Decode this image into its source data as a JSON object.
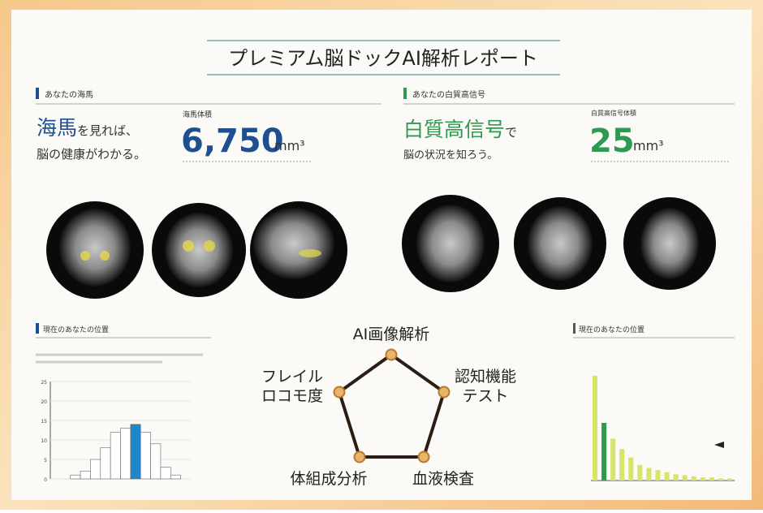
{
  "header": {
    "title": "プレミアム脳ドックAI解析レポート"
  },
  "hippocampus": {
    "section": "あなたの海馬",
    "highlight": "海馬",
    "line1_rest": "を見れば、",
    "line2": "脳の健康がわかる。",
    "measure_label": "海馬体積",
    "value": "6,750",
    "unit": "mm³"
  },
  "white_matter": {
    "section": "あなたの白質高信号",
    "highlight": "白質高信号",
    "line1_rest": "で",
    "line2": "脳の状況を知ろう。",
    "measure_label": "白質高信号体積",
    "value": "25",
    "unit": "mm³"
  },
  "position_left": {
    "title": "現在のあなたの位置",
    "values": [
      0,
      0,
      1,
      2,
      5,
      8,
      12,
      13,
      14,
      12,
      9,
      3,
      1,
      0
    ],
    "highlight_index": 8,
    "ylim": [
      0,
      25
    ],
    "yticks": [
      0,
      5,
      10,
      15,
      20,
      25
    ]
  },
  "position_right": {
    "title": "現在のあなたの位置",
    "values": [
      100,
      55,
      40,
      30,
      22,
      15,
      12,
      10,
      8,
      6,
      5,
      4,
      3,
      3,
      2,
      2
    ],
    "highlight_index": 1,
    "ylim": [
      0,
      110
    ]
  },
  "diagram": {
    "nodes": [
      [
        "AI画像解析"
      ],
      [
        "認知機能",
        "テスト"
      ],
      [
        "血液検査"
      ],
      [
        "体組成分析"
      ],
      [
        "フレイル",
        "ロコモ度"
      ]
    ]
  }
}
